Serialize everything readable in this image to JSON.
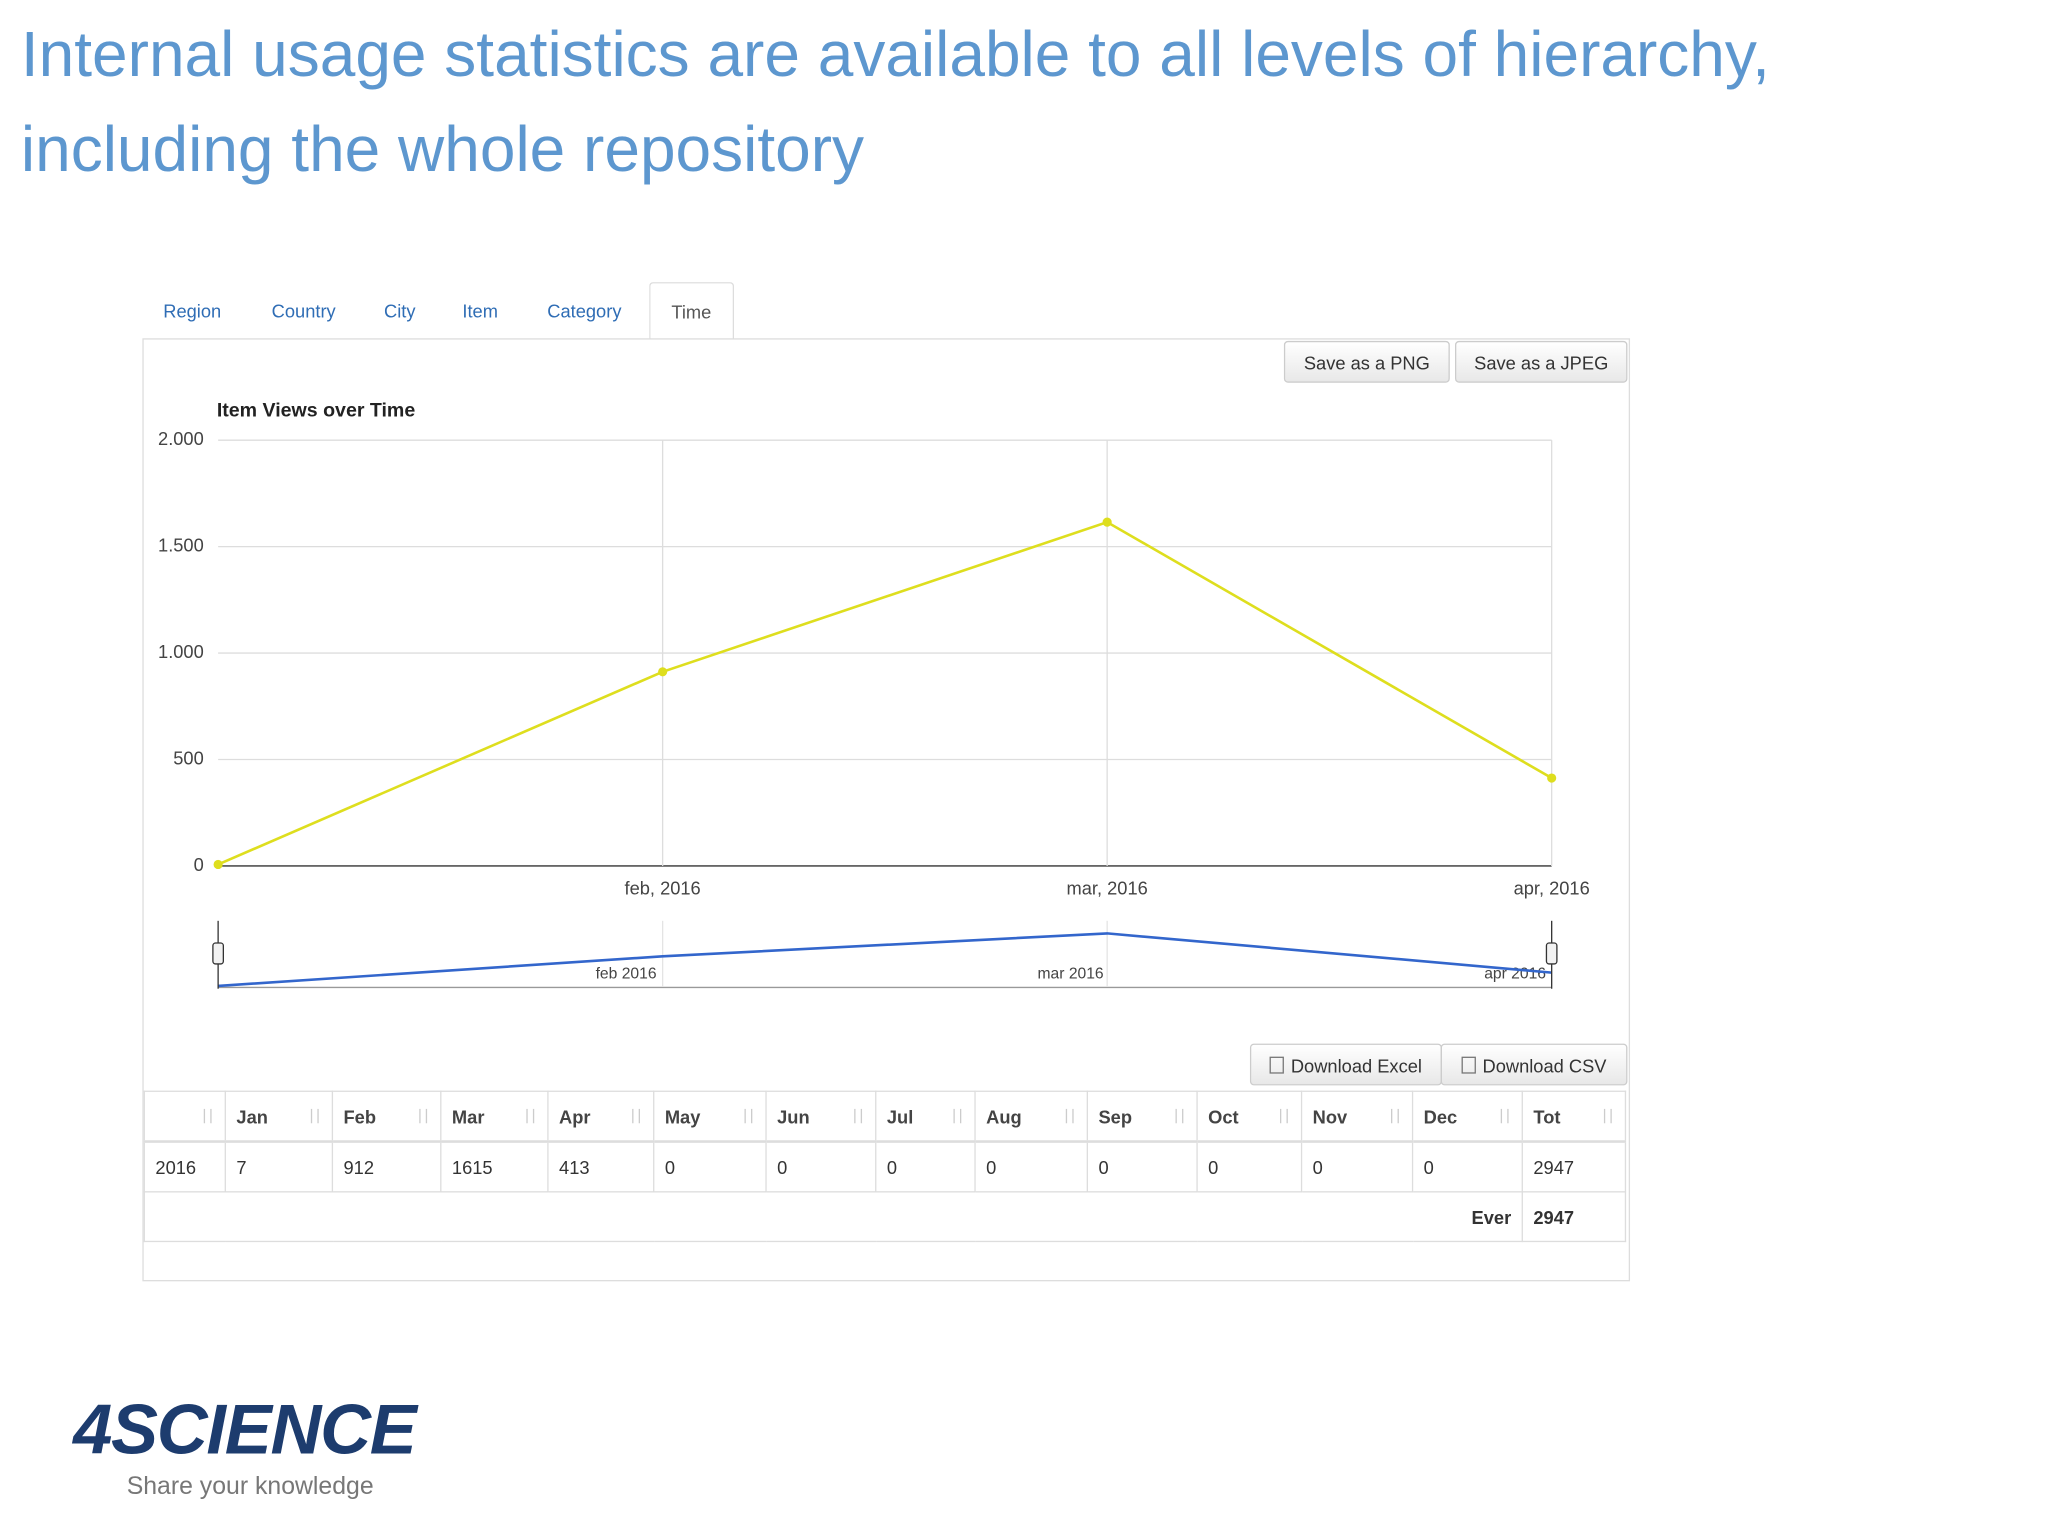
{
  "header": {
    "title_lines": [
      "Internal usage statistics are available to all levels of hierarchy,",
      "including the whole repository"
    ]
  },
  "tabs": [
    "Region",
    "Country",
    "City",
    "Item",
    "Category",
    "Time"
  ],
  "active_tab": 5,
  "chart_buttons": [
    "Save as a PNG",
    "Save as a JPEG"
  ],
  "chart_data": {
    "type": "line",
    "title": "Item Views over Time",
    "categories": [
      null,
      "feb, 2016",
      "mar, 2016",
      "apr, 2016"
    ],
    "series": [
      {
        "values": [
          7,
          912,
          1615,
          413
        ],
        "color": "#dede1e"
      }
    ],
    "ylim": [
      0,
      2000
    ],
    "yticks": [
      {
        "value": 2000,
        "label": "2.000"
      },
      {
        "value": 1500,
        "label": "1.500"
      },
      {
        "value": 1000,
        "label": "1.000"
      },
      500,
      0
    ],
    "grid": true,
    "navigator": {
      "labels": [
        "feb 2016",
        "mar 2016",
        "apr 2016"
      ],
      "color": "#3366cc"
    }
  },
  "table_buttons": [
    "Download Excel",
    "Download CSV"
  ],
  "table": {
    "columns": [
      null,
      "Jan",
      "Feb",
      "Mar",
      "Apr",
      "May",
      "Jun",
      "Jul",
      "Aug",
      "Sep",
      "Oct",
      "Nov",
      "Dec",
      "Tot"
    ],
    "rows": [
      [
        2016,
        7,
        912,
        1615,
        413,
        0,
        0,
        0,
        0,
        0,
        0,
        0,
        0,
        2947
      ]
    ],
    "footer": {
      "label": "Ever",
      "value": 2947
    }
  },
  "logo": {
    "name": "4SCIENCE",
    "tagline": "Share your knowledge"
  }
}
